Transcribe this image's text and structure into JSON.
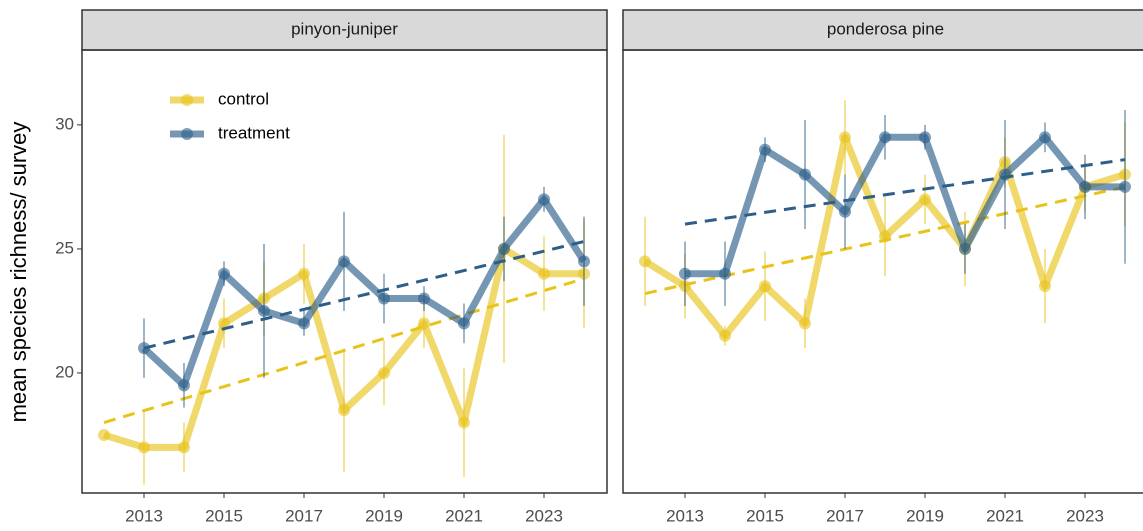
{
  "chart_data": {
    "type": "line",
    "y_label": "mean species richness/ survey",
    "x": [
      2012,
      2013,
      2014,
      2015,
      2016,
      2017,
      2018,
      2019,
      2020,
      2021,
      2022,
      2023,
      2024
    ],
    "xlim": [
      2011.45,
      2024.575
    ],
    "xticks": [
      2013,
      2015,
      2017,
      2019,
      2021,
      2023
    ],
    "ylim": [
      15.16,
      33.02
    ],
    "yticks": [
      20,
      25,
      30
    ],
    "legend": "top-left",
    "series": [
      {
        "name": "control",
        "color": "#e8c31a"
      },
      {
        "name": "treatment",
        "color": "#2d5f8a"
      }
    ],
    "panels": [
      {
        "title": "pinyon-juniper",
        "series": [
          {
            "values": [
              17.5,
              17,
              17,
              22,
              23,
              24,
              18.5,
              20,
              22,
              18,
              25,
              24,
              24
            ],
            "errors": [
              0,
              1.5,
              1,
              1,
              1.5,
              1.2,
              2.5,
              1.3,
              1,
              2.2,
              4.6,
              1.5,
              2.2
            ],
            "trend": {
              "x": [
                2012,
                2024
              ],
              "values": [
                18,
                23.8
              ]
            }
          },
          {
            "values": [
              null,
              21,
              19.5,
              24,
              22.5,
              22,
              24.5,
              23,
              23,
              22,
              25,
              27,
              24.5
            ],
            "errors": [
              null,
              1.2,
              0.9,
              0.5,
              2.7,
              0.5,
              2,
              1,
              0.5,
              0.8,
              1.3,
              0.5,
              1.8
            ],
            "trend": {
              "x": [
                2013,
                2024
              ],
              "values": [
                21,
                25.3
              ]
            }
          }
        ]
      },
      {
        "title": "ponderosa pine",
        "series": [
          {
            "values": [
              24.5,
              23.5,
              21.5,
              23.5,
              22,
              29.5,
              25.5,
              27,
              25,
              28.5,
              23.5,
              27.5,
              28
            ],
            "errors": [
              1.8,
              1.3,
              0.4,
              1.4,
              1,
              1.5,
              1.6,
              1,
              1.5,
              1,
              1.5,
              1,
              2.1
            ],
            "trend": {
              "x": [
                2012,
                2024
              ],
              "values": [
                23.2,
                27.5
              ]
            }
          },
          {
            "values": [
              null,
              24,
              24,
              29,
              28,
              26.5,
              29.5,
              29.5,
              25,
              28,
              29.5,
              27.5,
              27.5
            ],
            "errors": [
              null,
              1.3,
              1.3,
              0.5,
              2.2,
              1.5,
              0.9,
              0.5,
              1,
              2.2,
              0.6,
              1.3,
              3.1
            ],
            "trend": {
              "x": [
                2013,
                2024
              ],
              "values": [
                26,
                28.6
              ]
            }
          }
        ]
      }
    ]
  }
}
